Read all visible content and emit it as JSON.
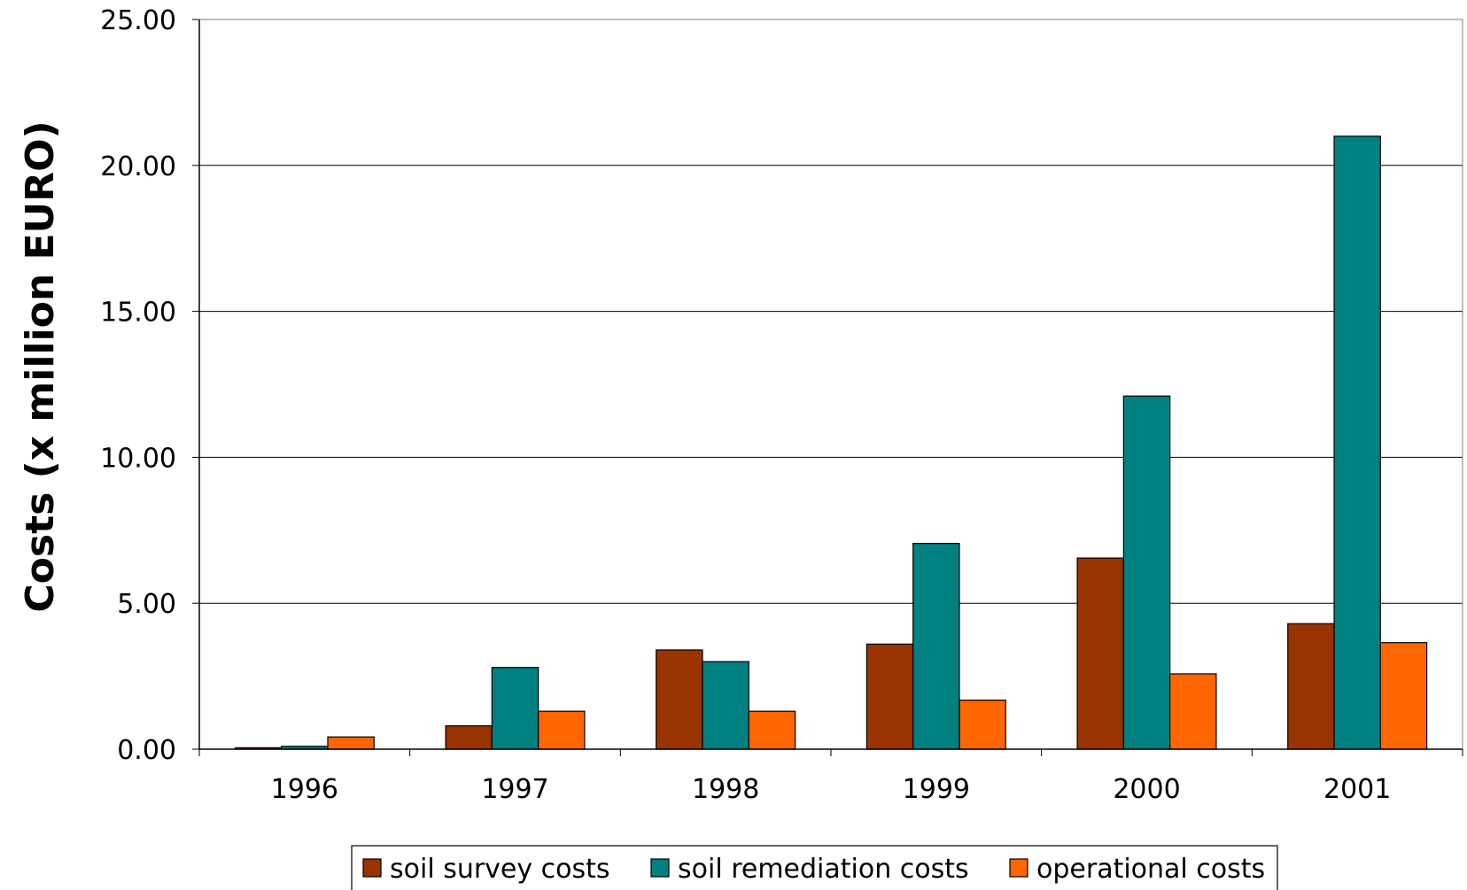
{
  "chart_data": {
    "type": "bar",
    "title": "",
    "xlabel": "",
    "ylabel": "Costs (x million EURO)",
    "categories": [
      "1996",
      "1997",
      "1998",
      "1999",
      "2000",
      "2001"
    ],
    "ylim": [
      0,
      25
    ],
    "yticks": [
      "0.00",
      "5.00",
      "10.00",
      "15.00",
      "20.00",
      "25.00"
    ],
    "grid": true,
    "legend_position": "bottom",
    "series": [
      {
        "name": "soil survey costs",
        "color": "#993300",
        "values": [
          0.05,
          0.8,
          3.4,
          3.6,
          6.55,
          4.3
        ]
      },
      {
        "name": "soil remediation costs",
        "color": "#008080",
        "values": [
          0.1,
          2.8,
          3.0,
          7.05,
          12.1,
          21.0
        ]
      },
      {
        "name": "operational costs",
        "color": "#FF6600",
        "values": [
          0.42,
          1.3,
          1.3,
          1.68,
          2.58,
          3.65
        ]
      }
    ]
  }
}
